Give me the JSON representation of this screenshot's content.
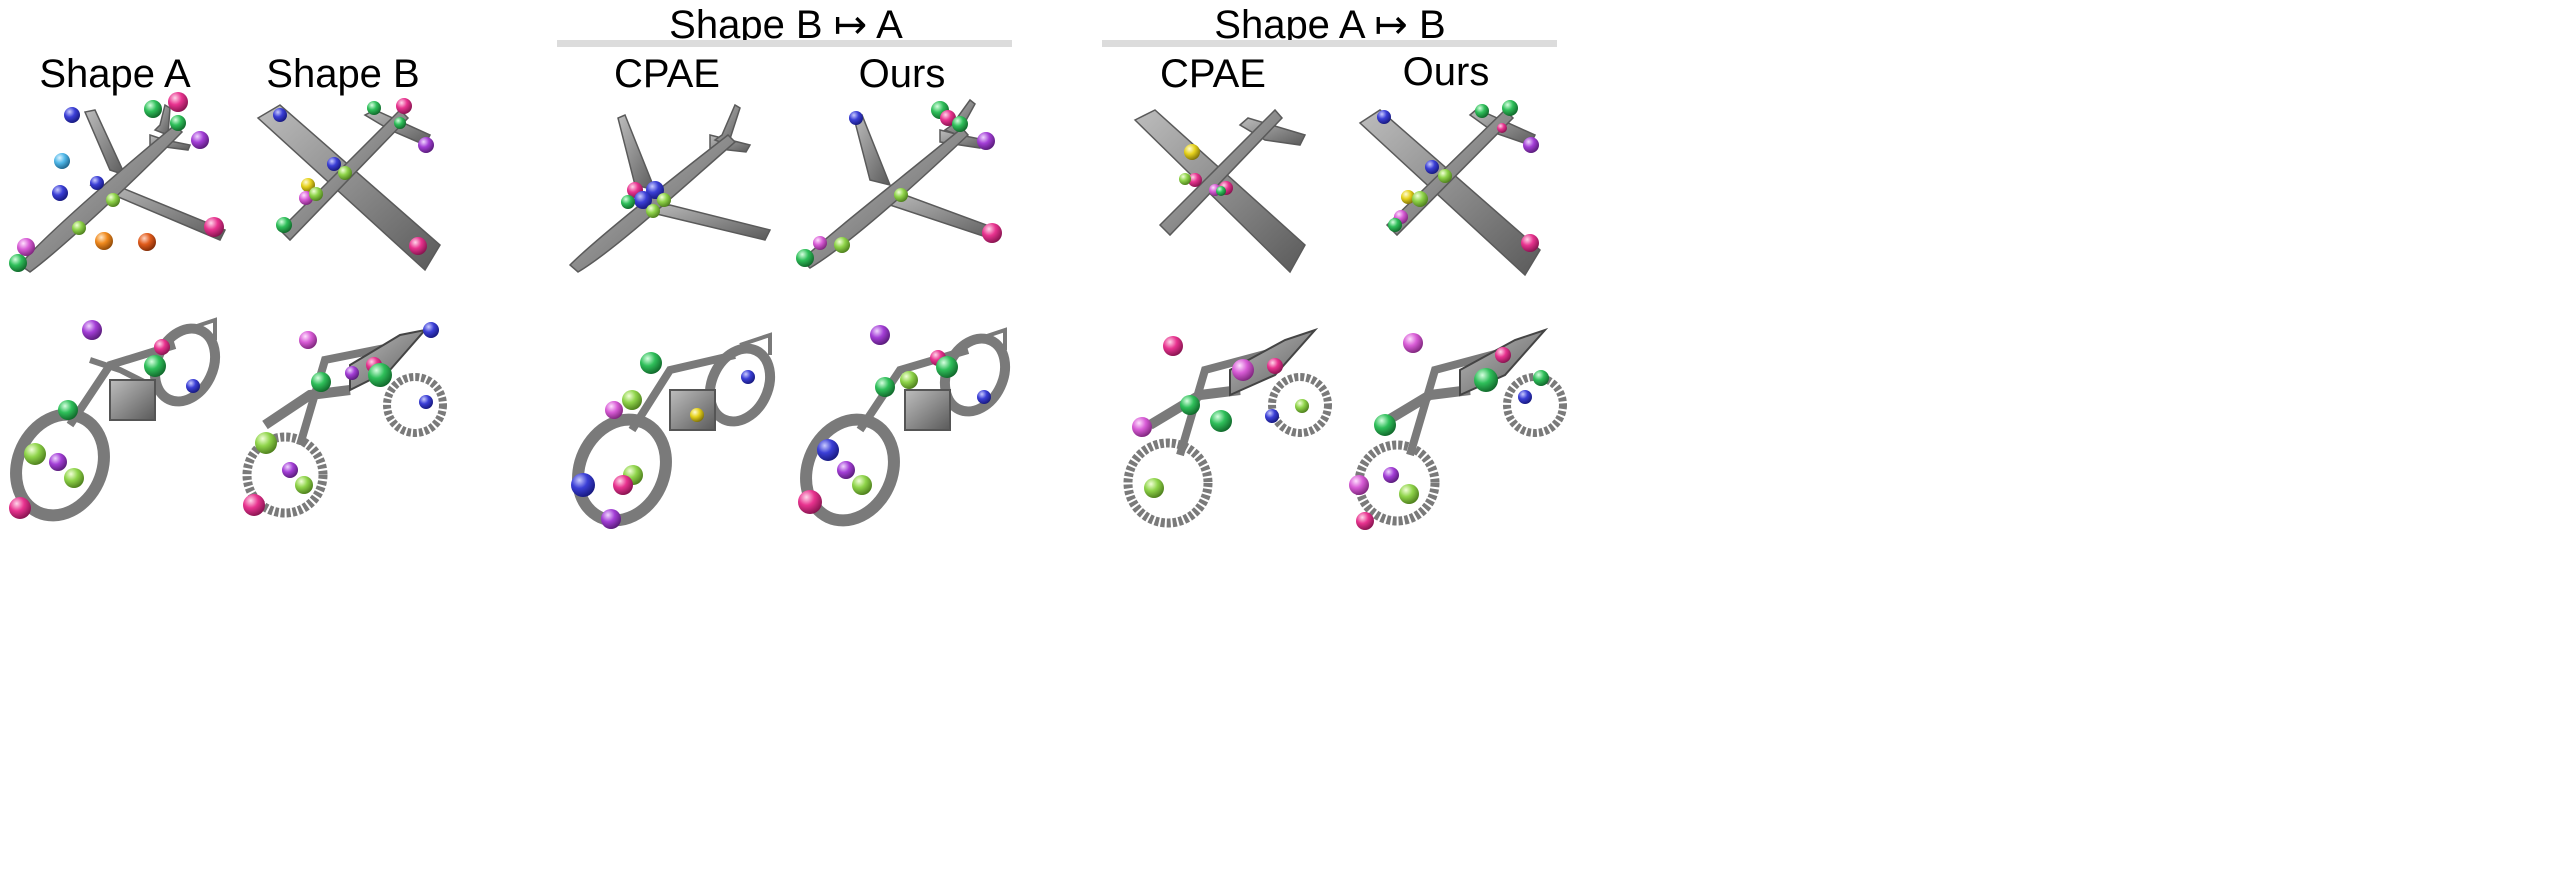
{
  "groups": [
    {
      "title": "Shape B ↦ A"
    },
    {
      "title": "Shape A ↦ B"
    }
  ],
  "columns": [
    {
      "label": "Shape A"
    },
    {
      "label": "Shape B"
    },
    {
      "label": "CPAE"
    },
    {
      "label": "Ours"
    },
    {
      "label": "CPAE"
    },
    {
      "label": "Ours"
    }
  ],
  "colors": {
    "model_gray": "#8f8f8f",
    "model_dark": "#5e5e5e",
    "header_bar": "#dcdcdc",
    "keypoints": [
      "#3b3fd6",
      "#4fb7e8",
      "#2fbf5a",
      "#8fd44a",
      "#e8338f",
      "#a33ed6",
      "#f08a1e",
      "#e05b1b",
      "#e6d21c",
      "#d85cd6",
      "#3cc98a",
      "#2b7be0"
    ]
  }
}
